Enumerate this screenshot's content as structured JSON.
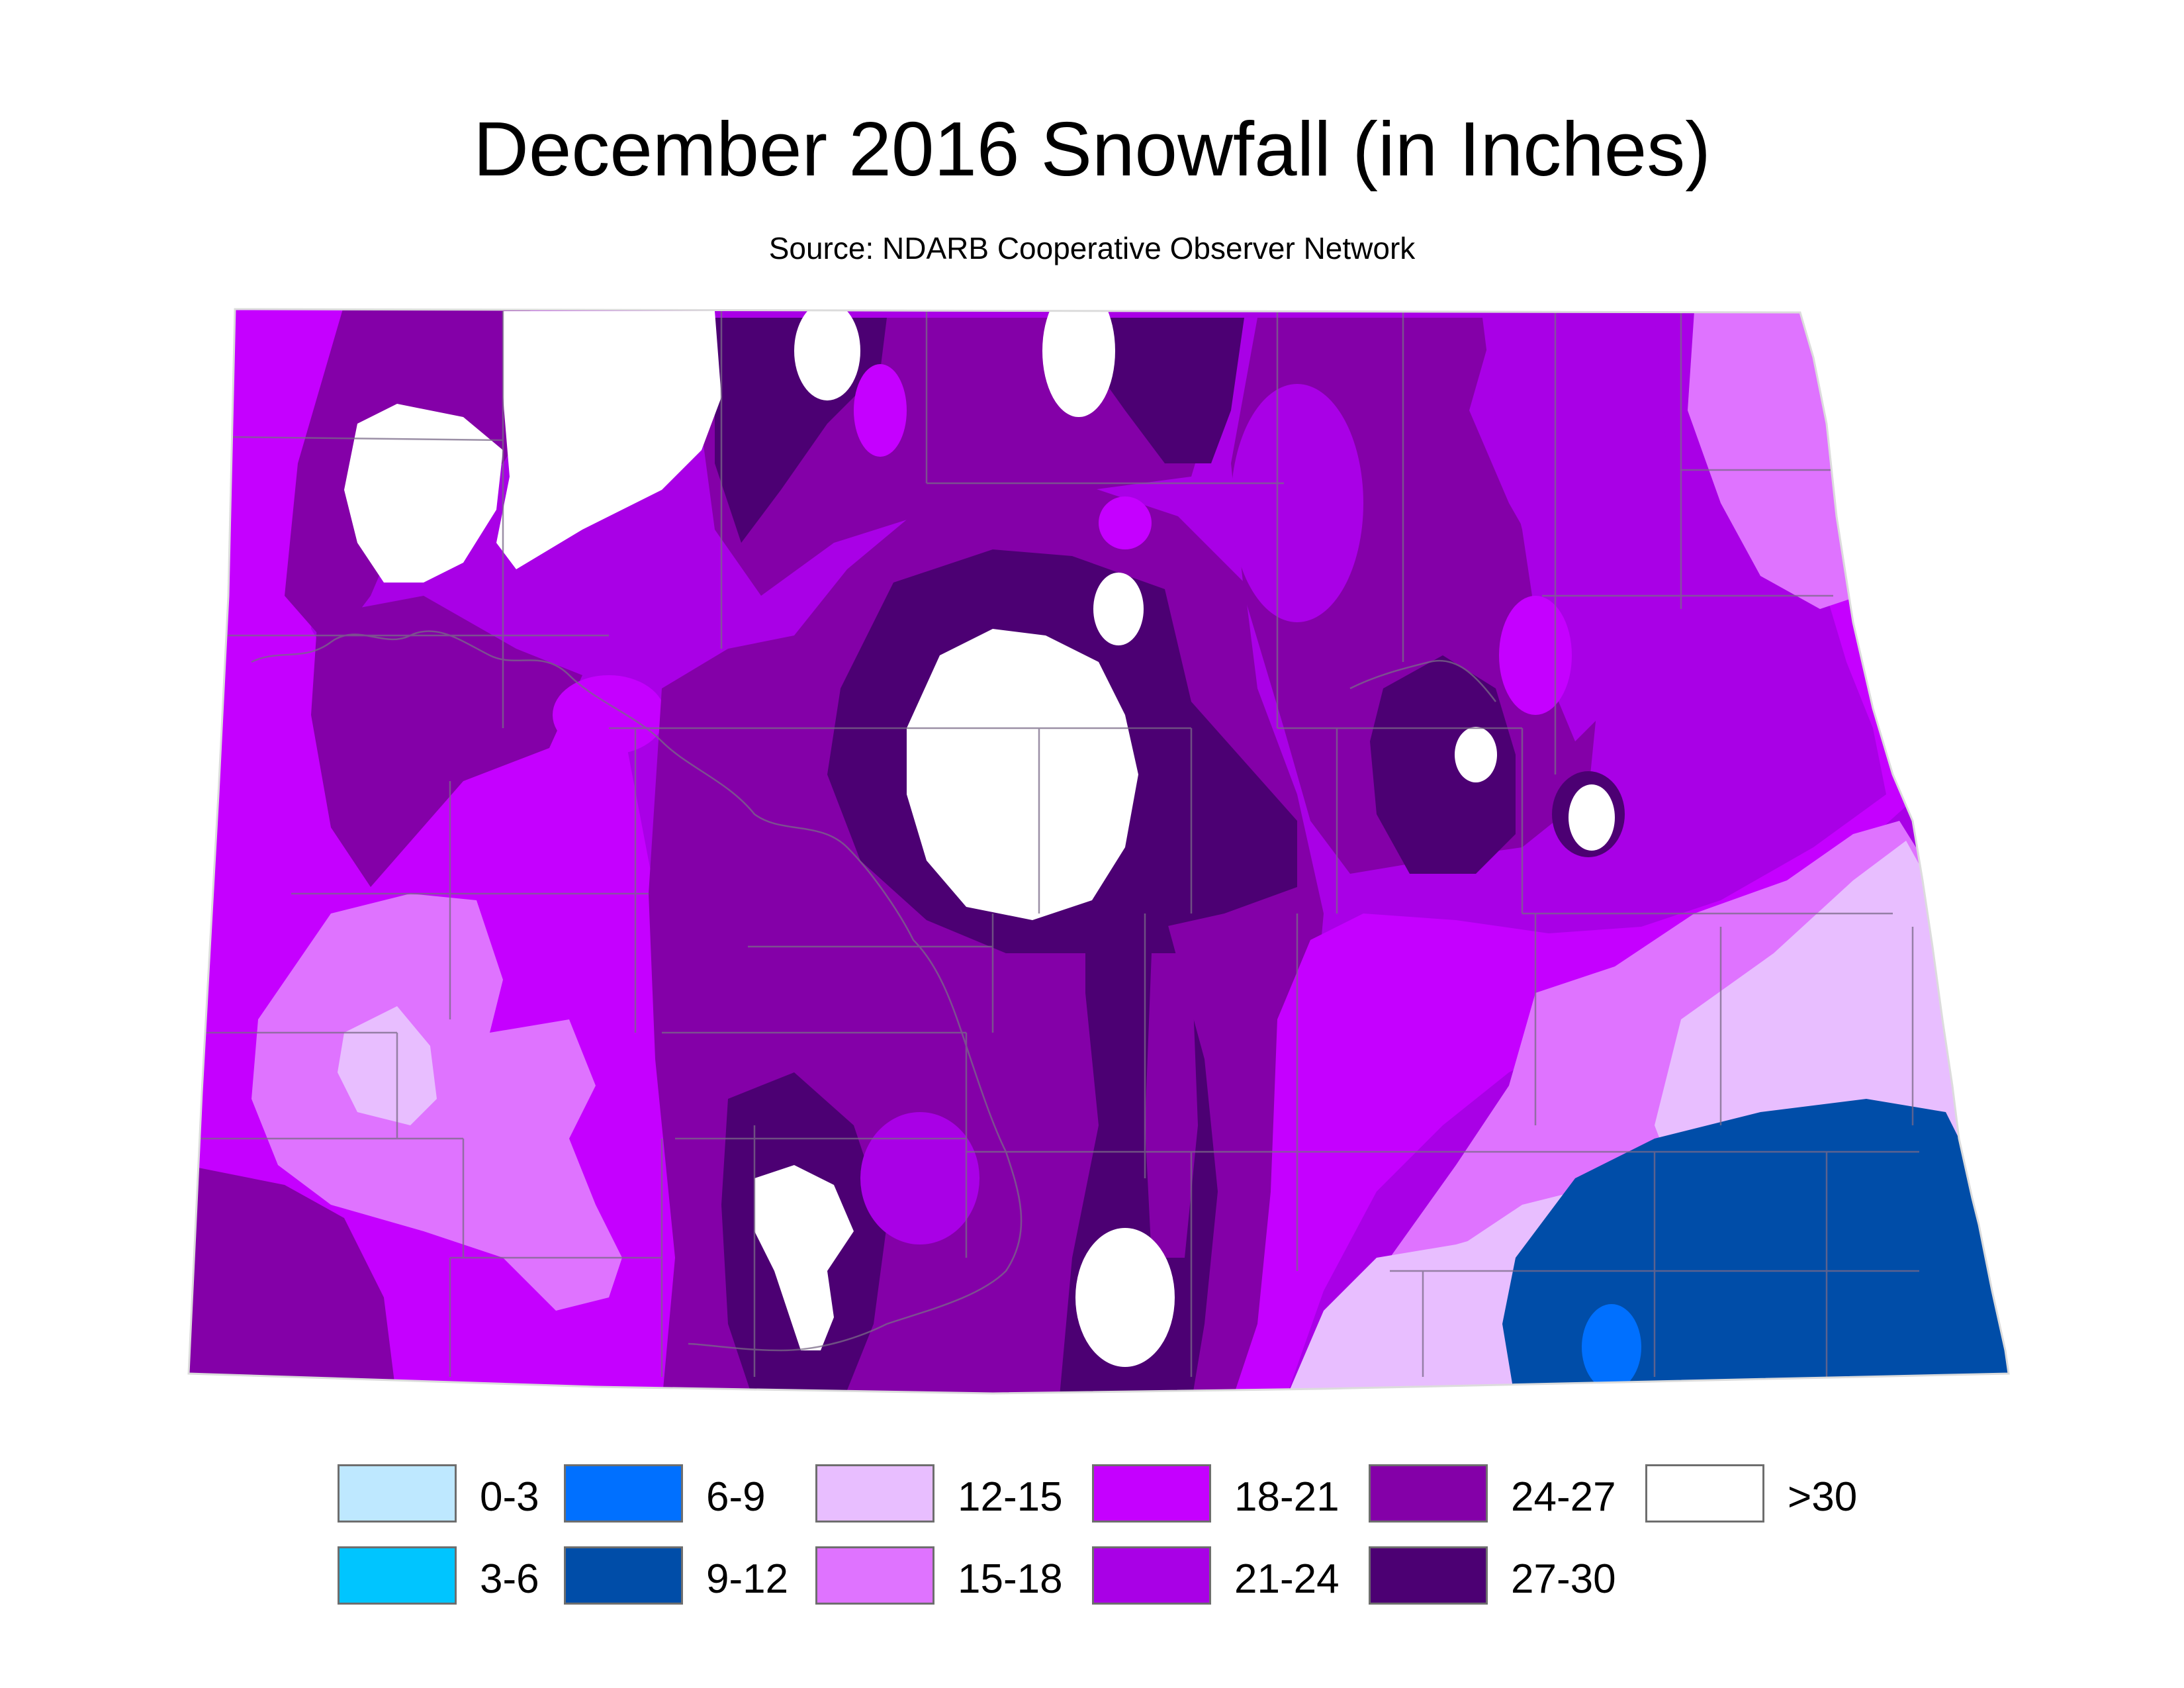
{
  "title": "December 2016 Snowfall (in Inches)",
  "subtitle": "Source: NDARB Cooperative Observer Network",
  "legend": [
    {
      "label": "0-3",
      "color": "#bee8ff"
    },
    {
      "label": "3-6",
      "color": "#00c5ff"
    },
    {
      "label": "6-9",
      "color": "#0070ff"
    },
    {
      "label": "9-12",
      "color": "#004da8"
    },
    {
      "label": "12-15",
      "color": "#e8beff"
    },
    {
      "label": "15-18",
      "color": "#df73ff"
    },
    {
      "label": "18-21",
      "color": "#c500ff"
    },
    {
      "label": "21-24",
      "color": "#a900e6"
    },
    {
      "label": "24-27",
      "color": "#8400a8"
    },
    {
      "label": "27-30",
      "color": "#4c0073"
    },
    {
      "label": ">30",
      "color": "#ffffff"
    }
  ]
}
